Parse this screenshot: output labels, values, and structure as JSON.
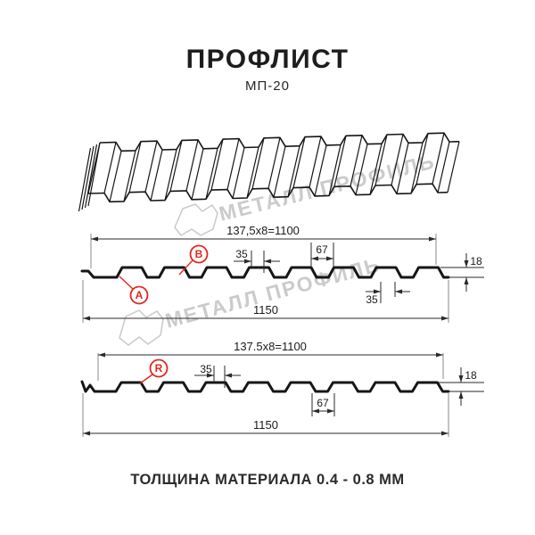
{
  "title": "ПРОФЛИСТ",
  "subtitle": "МП-20",
  "footer": "ТОЛЩИНА МАТЕРИАЛА 0.4 - 0.8 ММ",
  "watermark": {
    "brand": "МЕТАЛЛ ПРОФИЛЬ"
  },
  "colors": {
    "accent_red": "#e02820",
    "drawing_line": "#161616",
    "dimension_line": "#2a2a2a",
    "extension_line": "#8a8a8a",
    "watermark_gray": "#c9c9c9"
  },
  "front_section": {
    "formula": "137,5x8=1100",
    "total_width": "1150",
    "crest_width": "35",
    "valley_span": "67",
    "profile_height": "18",
    "bottom_width": "35",
    "label_a": "A",
    "label_b": "B"
  },
  "reverse_section": {
    "formula": "137.5x8=1100",
    "total_width": "1150",
    "crest_width": "35",
    "valley_span": "67",
    "profile_height": "18",
    "label_r": "R"
  }
}
